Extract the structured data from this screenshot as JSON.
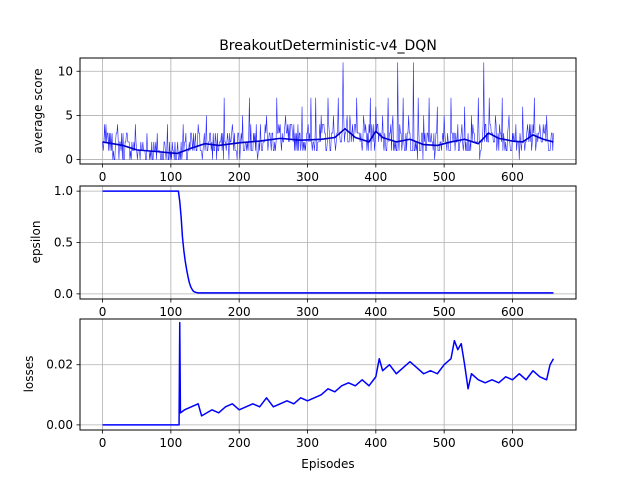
{
  "chart_data": [
    {
      "type": "line",
      "title": "BreakoutDeterministic-v4_DQN",
      "xlabel": "",
      "ylabel": "average score",
      "xlim": [
        -33,
        693
      ],
      "ylim": [
        -0.5,
        11.5
      ],
      "xticks": [
        0,
        100,
        200,
        300,
        400,
        500,
        600
      ],
      "yticks": [
        0,
        5,
        10
      ],
      "grid": true,
      "series": [
        {
          "style": "raw_scores",
          "color": "#0000ff",
          "x_start": 0,
          "x_step": 1,
          "n": 661,
          "values": [],
          "spikes": [
            [
              5,
              4
            ],
            [
              12,
              3
            ],
            [
              22,
              4
            ],
            [
              35,
              3
            ],
            [
              48,
              4
            ],
            [
              65,
              3
            ],
            [
              80,
              3
            ],
            [
              95,
              4
            ],
            [
              118,
              4
            ],
            [
              130,
              3
            ],
            [
              140,
              4
            ],
            [
              152,
              5
            ],
            [
              165,
              3
            ],
            [
              178,
              7
            ],
            [
              190,
              4
            ],
            [
              205,
              5
            ],
            [
              215,
              7
            ],
            [
              225,
              4
            ],
            [
              240,
              5
            ],
            [
              255,
              7
            ],
            [
              268,
              5
            ],
            [
              280,
              4
            ],
            [
              292,
              6
            ],
            [
              305,
              7
            ],
            [
              312,
              7
            ],
            [
              320,
              5
            ],
            [
              330,
              7
            ],
            [
              338,
              5
            ],
            [
              345,
              7
            ],
            [
              352,
              11
            ],
            [
              362,
              5
            ],
            [
              372,
              7
            ],
            [
              382,
              5
            ],
            [
              392,
              7
            ],
            [
              400,
              6
            ],
            [
              410,
              5
            ],
            [
              418,
              7
            ],
            [
              425,
              5
            ],
            [
              432,
              11
            ],
            [
              440,
              7
            ],
            [
              448,
              5
            ],
            [
              455,
              11
            ],
            [
              462,
              7
            ],
            [
              470,
              5
            ],
            [
              478,
              7
            ],
            [
              490,
              6
            ],
            [
              500,
              5
            ],
            [
              510,
              7
            ],
            [
              520,
              4
            ],
            [
              530,
              6
            ],
            [
              540,
              5
            ],
            [
              550,
              7
            ],
            [
              558,
              11
            ],
            [
              566,
              7
            ],
            [
              575,
              5
            ],
            [
              585,
              7
            ],
            [
              595,
              5
            ],
            [
              605,
              4
            ],
            [
              615,
              6
            ],
            [
              625,
              4
            ],
            [
              632,
              7
            ],
            [
              640,
              4
            ],
            [
              650,
              5
            ]
          ]
        },
        {
          "style": "moving_average",
          "color": "#0000cc",
          "points": [
            [
              0,
              2.0
            ],
            [
              30,
              1.6
            ],
            [
              50,
              1.1
            ],
            [
              80,
              0.9
            ],
            [
              100,
              0.75
            ],
            [
              110,
              0.7
            ],
            [
              130,
              1.3
            ],
            [
              150,
              1.8
            ],
            [
              170,
              1.6
            ],
            [
              200,
              1.9
            ],
            [
              230,
              2.1
            ],
            [
              260,
              2.4
            ],
            [
              290,
              2.2
            ],
            [
              320,
              2.3
            ],
            [
              340,
              2.5
            ],
            [
              355,
              3.5
            ],
            [
              370,
              2.5
            ],
            [
              390,
              2.0
            ],
            [
              400,
              3.2
            ],
            [
              410,
              2.5
            ],
            [
              430,
              2.0
            ],
            [
              450,
              2.3
            ],
            [
              470,
              1.7
            ],
            [
              490,
              1.6
            ],
            [
              510,
              2.0
            ],
            [
              530,
              2.3
            ],
            [
              550,
              1.8
            ],
            [
              565,
              3.0
            ],
            [
              580,
              2.4
            ],
            [
              600,
              2.1
            ],
            [
              615,
              2.0
            ],
            [
              630,
              2.8
            ],
            [
              645,
              2.3
            ],
            [
              660,
              2.0
            ]
          ]
        }
      ]
    },
    {
      "type": "line",
      "title": "",
      "xlabel": "",
      "ylabel": "epsilon",
      "xlim": [
        -33,
        693
      ],
      "ylim": [
        -0.05,
        1.05
      ],
      "xticks": [
        0,
        100,
        200,
        300,
        400,
        500,
        600
      ],
      "yticks": [
        0.0,
        0.5,
        1.0
      ],
      "ytick_labels": [
        "0.0",
        "0.5",
        "1.0"
      ],
      "grid": true,
      "series": [
        {
          "color": "#0000ff",
          "points": [
            [
              0,
              1.0
            ],
            [
              111,
              1.0
            ],
            [
              113,
              0.9
            ],
            [
              115,
              0.75
            ],
            [
              117,
              0.55
            ],
            [
              119,
              0.42
            ],
            [
              121,
              0.32
            ],
            [
              123,
              0.24
            ],
            [
              125,
              0.17
            ],
            [
              127,
              0.11
            ],
            [
              129,
              0.07
            ],
            [
              131,
              0.045
            ],
            [
              133,
              0.025
            ],
            [
              136,
              0.015
            ],
            [
              140,
              0.01
            ],
            [
              660,
              0.01
            ]
          ]
        }
      ]
    },
    {
      "type": "line",
      "title": "",
      "xlabel": "Episodes",
      "ylabel": "losses",
      "xlim": [
        -33,
        693
      ],
      "ylim": [
        -0.0017,
        0.0352
      ],
      "xticks": [
        0,
        100,
        200,
        300,
        400,
        500,
        600
      ],
      "yticks": [
        0.0,
        0.02
      ],
      "ytick_labels": [
        "0.00",
        "0.02"
      ],
      "grid": true,
      "series": [
        {
          "color": "#0000ff",
          "points": [
            [
              0,
              0.0
            ],
            [
              112,
              0.0
            ],
            [
              113,
              0.034
            ],
            [
              114,
              0.004
            ],
            [
              120,
              0.005
            ],
            [
              130,
              0.006
            ],
            [
              140,
              0.007
            ],
            [
              145,
              0.003
            ],
            [
              160,
              0.005
            ],
            [
              170,
              0.004
            ],
            [
              180,
              0.006
            ],
            [
              190,
              0.007
            ],
            [
              200,
              0.005
            ],
            [
              210,
              0.006
            ],
            [
              220,
              0.007
            ],
            [
              230,
              0.006
            ],
            [
              240,
              0.009
            ],
            [
              250,
              0.006
            ],
            [
              260,
              0.007
            ],
            [
              270,
              0.008
            ],
            [
              280,
              0.007
            ],
            [
              290,
              0.009
            ],
            [
              300,
              0.008
            ],
            [
              310,
              0.009
            ],
            [
              320,
              0.01
            ],
            [
              330,
              0.012
            ],
            [
              340,
              0.011
            ],
            [
              350,
              0.013
            ],
            [
              360,
              0.014
            ],
            [
              370,
              0.013
            ],
            [
              380,
              0.015
            ],
            [
              390,
              0.013
            ],
            [
              400,
              0.016
            ],
            [
              405,
              0.022
            ],
            [
              410,
              0.018
            ],
            [
              420,
              0.02
            ],
            [
              430,
              0.017
            ],
            [
              440,
              0.019
            ],
            [
              450,
              0.021
            ],
            [
              460,
              0.019
            ],
            [
              470,
              0.017
            ],
            [
              480,
              0.018
            ],
            [
              490,
              0.017
            ],
            [
              500,
              0.02
            ],
            [
              510,
              0.022
            ],
            [
              515,
              0.028
            ],
            [
              520,
              0.025
            ],
            [
              525,
              0.027
            ],
            [
              530,
              0.02
            ],
            [
              535,
              0.012
            ],
            [
              540,
              0.017
            ],
            [
              550,
              0.015
            ],
            [
              560,
              0.014
            ],
            [
              570,
              0.015
            ],
            [
              580,
              0.014
            ],
            [
              590,
              0.016
            ],
            [
              600,
              0.015
            ],
            [
              610,
              0.017
            ],
            [
              620,
              0.015
            ],
            [
              630,
              0.018
            ],
            [
              640,
              0.016
            ],
            [
              650,
              0.015
            ],
            [
              655,
              0.02
            ],
            [
              660,
              0.022
            ]
          ]
        }
      ]
    }
  ]
}
